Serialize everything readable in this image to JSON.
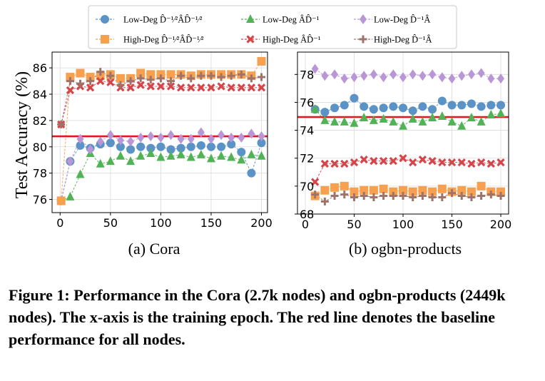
{
  "figure_caption": "Figure 1: Performance in the Cora (2.7k nodes) and ogbn-products (2449k nodes). The x-axis is the training epoch. The red line denotes the baseline performance for all nodes.",
  "legend": [
    {
      "label": "Low-Deg D̂⁻¹⁄²ÂD̂⁻¹⁄²",
      "color": "#5b93c7",
      "marker": "circle"
    },
    {
      "label": "Low-Deg ÂD̂⁻¹",
      "color": "#52b356",
      "marker": "triangle"
    },
    {
      "label": "Low-Deg D̂⁻¹Â",
      "color": "#b996d6",
      "marker": "diamond"
    },
    {
      "label": "High-Deg D̂⁻¹⁄²ÂD̂⁻¹⁄²",
      "color": "#f7a04f",
      "marker": "square"
    },
    {
      "label": "High-Deg ÂD̂⁻¹",
      "color": "#d6454a",
      "marker": "x"
    },
    {
      "label": "High-Deg D̂⁻¹Â",
      "color": "#a0736a",
      "marker": "plus"
    }
  ],
  "chart_data": [
    {
      "type": "line",
      "subtitle": "(a) Cora",
      "ylabel": "Test Accuracy (%)",
      "xlabel": "",
      "xlim": [
        -8,
        206
      ],
      "ylim": [
        75,
        87.2
      ],
      "xticks": [
        0,
        50,
        100,
        150,
        200
      ],
      "yticks": [
        76,
        78,
        80,
        82,
        84,
        86
      ],
      "baseline": 80.8,
      "x": [
        1,
        10,
        20,
        30,
        40,
        50,
        60,
        70,
        80,
        90,
        100,
        110,
        120,
        130,
        140,
        150,
        160,
        170,
        180,
        190,
        200
      ],
      "series": [
        {
          "name": "Low-Deg D̂⁻¹⁄²ÂD̂⁻¹⁄²",
          "color": "#5b93c7",
          "marker": "circle",
          "values": [
            75.9,
            78.9,
            80.1,
            79.9,
            80.2,
            80.3,
            80.0,
            79.8,
            80.0,
            79.9,
            80.0,
            79.8,
            79.9,
            80.0,
            80.1,
            80.0,
            80.0,
            80.2,
            79.6,
            78.0,
            80.3
          ]
        },
        {
          "name": "Low-Deg ÂD̂⁻¹",
          "color": "#52b356",
          "marker": "triangle",
          "values": [
            75.9,
            76.2,
            77.9,
            79.5,
            78.7,
            78.9,
            79.3,
            78.9,
            79.3,
            79.5,
            79.2,
            79.3,
            79.4,
            79.2,
            79.4,
            79.1,
            79.3,
            79.2,
            79.0,
            79.4,
            79.3
          ]
        },
        {
          "name": "Low-Deg D̂⁻¹Â",
          "color": "#b996d6",
          "marker": "diamond",
          "values": [
            75.9,
            78.9,
            80.6,
            79.8,
            80.4,
            80.9,
            80.5,
            80.4,
            80.7,
            80.8,
            80.7,
            80.9,
            80.6,
            80.6,
            81.1,
            80.6,
            80.9,
            80.7,
            80.7,
            81.0,
            80.8
          ]
        },
        {
          "name": "High-Deg D̂⁻¹⁄²ÂD̂⁻¹⁄²",
          "color": "#f7a04f",
          "marker": "square",
          "values": [
            75.9,
            85.3,
            85.6,
            85.3,
            85.4,
            85.5,
            85.2,
            85.2,
            85.6,
            85.5,
            85.5,
            85.5,
            85.5,
            85.4,
            85.5,
            85.5,
            85.5,
            85.5,
            85.5,
            85.4,
            86.5
          ]
        },
        {
          "name": "High-Deg ÂD̂⁻¹",
          "color": "#d6454a",
          "marker": "x",
          "values": [
            81.7,
            84.3,
            84.6,
            84.5,
            85.0,
            84.9,
            84.5,
            84.5,
            84.7,
            84.6,
            84.6,
            84.6,
            84.5,
            84.5,
            84.5,
            84.5,
            84.6,
            84.5,
            84.5,
            84.5,
            84.5
          ]
        },
        {
          "name": "High-Deg D̂⁻¹Â",
          "color": "#a0736a",
          "marker": "plus",
          "values": [
            81.7,
            85.0,
            84.8,
            85.0,
            85.7,
            85.4,
            84.7,
            85.0,
            85.2,
            85.1,
            85.2,
            85.0,
            85.4,
            85.2,
            85.4,
            85.4,
            85.3,
            85.4,
            85.5,
            85.2,
            85.3
          ]
        }
      ]
    },
    {
      "type": "line",
      "subtitle": "(b) ogbn-products",
      "ylabel": "",
      "xlabel": "",
      "xlim": [
        -8,
        208
      ],
      "ylim": [
        68,
        79.6
      ],
      "xticks": [
        0,
        50,
        100,
        150,
        200
      ],
      "yticks": [
        68,
        70,
        72,
        74,
        76,
        78
      ],
      "baseline": 74.95,
      "x": [
        10,
        20,
        30,
        40,
        50,
        60,
        70,
        80,
        90,
        100,
        110,
        120,
        130,
        140,
        150,
        160,
        170,
        180,
        190,
        200
      ],
      "series": [
        {
          "name": "Low-Deg D̂⁻¹⁄²ÂD̂⁻¹⁄²",
          "color": "#5b93c7",
          "marker": "circle",
          "values": [
            75.5,
            75.3,
            75.6,
            75.8,
            76.3,
            75.7,
            75.5,
            75.6,
            75.7,
            75.6,
            75.4,
            75.7,
            75.5,
            76.1,
            75.8,
            75.8,
            75.9,
            75.7,
            75.8,
            75.8
          ]
        },
        {
          "name": "Low-Deg ÂD̂⁻¹",
          "color": "#52b356",
          "marker": "triangle",
          "values": [
            75.5,
            74.7,
            74.6,
            74.6,
            74.5,
            74.9,
            74.7,
            74.8,
            74.6,
            74.3,
            74.8,
            74.6,
            74.9,
            75.0,
            74.6,
            74.3,
            74.9,
            74.6,
            75.1,
            75.2
          ]
        },
        {
          "name": "Low-Deg D̂⁻¹Â",
          "color": "#b996d6",
          "marker": "diamond",
          "values": [
            78.4,
            77.9,
            78.0,
            77.7,
            77.8,
            77.9,
            78.0,
            77.8,
            78.0,
            77.8,
            78.0,
            77.9,
            78.0,
            77.8,
            77.7,
            77.9,
            78.0,
            78.1,
            77.7,
            77.7
          ]
        },
        {
          "name": "High-Deg D̂⁻¹⁄²ÂD̂⁻¹⁄²",
          "color": "#f7a04f",
          "marker": "square",
          "values": [
            69.3,
            69.7,
            69.9,
            70.0,
            69.6,
            69.7,
            69.7,
            69.8,
            69.6,
            69.7,
            69.6,
            69.7,
            69.6,
            69.8,
            69.6,
            69.7,
            69.6,
            70.0,
            69.6,
            69.6
          ]
        },
        {
          "name": "High-Deg ÂD̂⁻¹",
          "color": "#d6454a",
          "marker": "x",
          "values": [
            70.3,
            71.6,
            71.6,
            71.6,
            71.7,
            71.9,
            71.8,
            71.8,
            71.8,
            72.0,
            71.7,
            71.9,
            71.8,
            71.7,
            71.7,
            71.7,
            71.6,
            71.7,
            71.6,
            71.7
          ]
        },
        {
          "name": "High-Deg D̂⁻¹Â",
          "color": "#a0736a",
          "marker": "plus",
          "values": [
            69.4,
            68.9,
            69.3,
            69.4,
            69.2,
            69.3,
            69.2,
            69.3,
            69.3,
            69.3,
            69.2,
            69.3,
            69.2,
            69.2,
            69.5,
            69.3,
            69.2,
            69.3,
            69.4,
            69.3
          ]
        }
      ]
    }
  ]
}
